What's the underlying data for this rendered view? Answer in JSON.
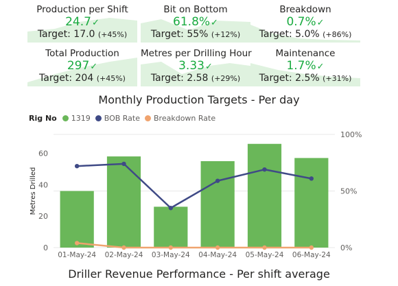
{
  "kpis": [
    {
      "title": "Production per Shift",
      "value": "24.7",
      "target": "Target: 17.0",
      "pct": "(+45%)"
    },
    {
      "title": "Bit on Bottom",
      "value": "61.8%",
      "target": "Target: 55%",
      "pct": "(+12%)"
    },
    {
      "title": "Breakdown",
      "value": "0.7%",
      "target": "Target: 5.0%",
      "pct": "(+86%)"
    },
    {
      "title": "Total Production",
      "value": "297",
      "target": "Target: 204",
      "pct": "(+45%)"
    },
    {
      "title": "Metres per Drilling Hour",
      "value": "3.33",
      "target": "Target: 2.58",
      "pct": "(+29%)"
    },
    {
      "title": "Maintenance",
      "value": "1.7%",
      "target": "Target: 2.5%",
      "pct": "(+31%)"
    }
  ],
  "colors": {
    "kpi_value": "#1aab40",
    "sparkline_fill": "#dff2df",
    "bar": "#6ab759",
    "bob_line": "#3f4a86",
    "breakdown_line": "#f0a36e",
    "axis_text": "#605e5c",
    "gridline": "#e8e8e8"
  },
  "icons": {
    "kpi_status": "check-icon"
  },
  "titles": {
    "monthly": "Monthly Production Targets - Per day",
    "driller": "Driller Revenue Performance - Per shift average"
  },
  "legend": {
    "title": "Rig No",
    "items": [
      {
        "label": "1319",
        "color": "#6ab759"
      },
      {
        "label": "BOB Rate",
        "color": "#3f4a86"
      },
      {
        "label": "Breakdown Rate",
        "color": "#f0a36e"
      }
    ]
  },
  "chart_data": {
    "type": "bar",
    "categories": [
      "01-May-24",
      "02-May-24",
      "03-May-24",
      "04-May-24",
      "05-May-24",
      "06-May-24"
    ],
    "ylabel": "Metres Drilled",
    "ylim": [
      0,
      72
    ],
    "yticks": [
      0,
      20,
      40,
      60
    ],
    "y2lim": [
      0,
      100
    ],
    "y2ticks": [
      "0%",
      "50%",
      "100%"
    ],
    "grid": true,
    "legend_position": "top-left",
    "series": [
      {
        "name": "1319",
        "kind": "bar",
        "axis": "left",
        "values": [
          36,
          58,
          26,
          55,
          66,
          57
        ]
      },
      {
        "name": "BOB Rate",
        "kind": "line",
        "axis": "right",
        "values": [
          72,
          74,
          35,
          59,
          69,
          61
        ]
      },
      {
        "name": "Breakdown Rate",
        "kind": "line",
        "axis": "right",
        "values": [
          4,
          0,
          0,
          0,
          0,
          0
        ]
      }
    ]
  }
}
